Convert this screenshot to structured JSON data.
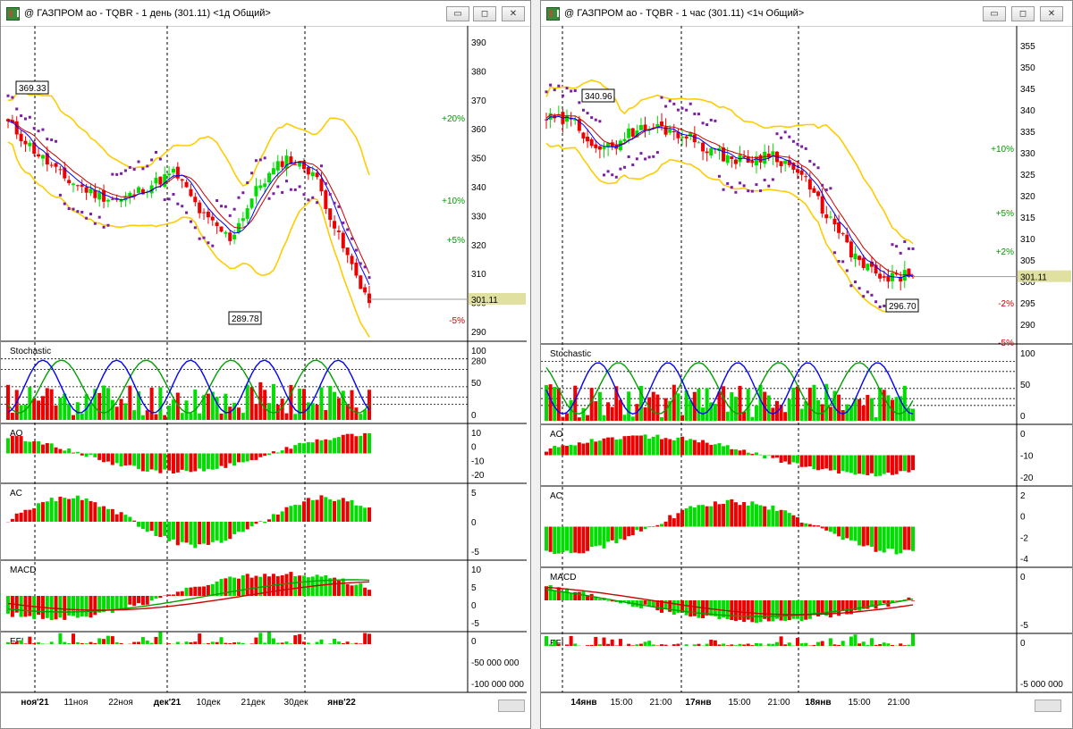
{
  "window_left": {
    "title": "@ ГАЗПРОМ ао - TQBR - 1 день (301.11) <1д Общий>",
    "price_axis": [
      "390",
      "380",
      "370",
      "360",
      "350",
      "340",
      "330",
      "320",
      "310",
      "300",
      "290",
      "280"
    ],
    "current_price": "301.11",
    "label_high": "369.33",
    "label_low": "289.78",
    "pct_labels": {
      "p20": "+20%",
      "p10": "+10%",
      "p5": "+5%",
      "m5": "-5%"
    },
    "stoch": {
      "name": "Stochastic",
      "axis": [
        "100",
        "50",
        "0"
      ]
    },
    "ao": {
      "name": "AO",
      "axis": [
        "10",
        "0",
        "-10",
        "-20"
      ]
    },
    "ac": {
      "name": "AC",
      "axis": [
        "5",
        "0",
        "-5"
      ]
    },
    "macd": {
      "name": "MACD",
      "axis": [
        "10",
        "5",
        "0",
        "-5"
      ]
    },
    "efi": {
      "name": "EFI",
      "axis": [
        "0",
        "-50 000 000",
        "-100 000 000"
      ]
    },
    "dates": [
      "ноя'21",
      "11ноя",
      "22ноя",
      "дек'21",
      "10дек",
      "21дек",
      "30дек",
      "янв'22"
    ]
  },
  "window_right": {
    "title": "@ ГАЗПРОМ ао - TQBR - 1 час (301.11) <1ч Общий>",
    "price_axis": [
      "355",
      "350",
      "345",
      "340",
      "335",
      "330",
      "325",
      "320",
      "315",
      "310",
      "305",
      "300",
      "295",
      "290"
    ],
    "current_price": "301.11",
    "label_high": "340.96",
    "label_low": "296.70",
    "pct_labels": {
      "p10": "+10%",
      "p5": "+5%",
      "p2": "+2%",
      "m2": "-2%",
      "m5": "-5%"
    },
    "stoch": {
      "name": "Stochastic",
      "axis": [
        "100",
        "50",
        "0"
      ]
    },
    "ao": {
      "name": "AO",
      "axis": [
        "0",
        "-10",
        "-20"
      ]
    },
    "ac": {
      "name": "AC",
      "axis": [
        "2",
        "0",
        "-2",
        "-4"
      ]
    },
    "macd": {
      "name": "MACD",
      "axis": [
        "0",
        "-5"
      ]
    },
    "efi": {
      "name": "EFI",
      "axis": [
        "0",
        "-5 000 000"
      ]
    },
    "dates": [
      "14янв",
      "15:00",
      "21:00",
      "17янв",
      "15:00",
      "21:00",
      "18янв",
      "15:00",
      "21:00"
    ]
  },
  "window_buttons": {
    "minimize": "▭",
    "restore": "◻",
    "close": "✕"
  },
  "colors": {
    "up": "#00dd00",
    "down": "#ee0000",
    "bollinger": "#ffcc00",
    "sar": "#7a1fa2",
    "ma_blue": "#0000ff",
    "ma_red": "#cc0000",
    "ma_green": "#00a000",
    "price_tag": "#e0e0a0"
  }
}
